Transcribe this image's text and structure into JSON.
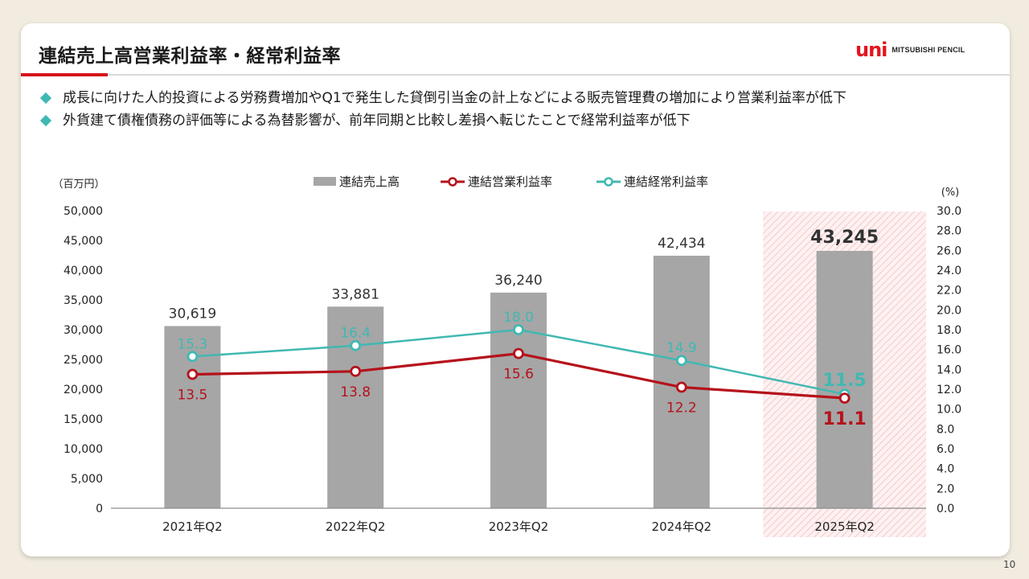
{
  "page": {
    "title": "連結売上高営業利益率・経常利益率",
    "logo_mark": "uni",
    "logo_text": "MITSUBISHI PENCIL",
    "page_number": "10",
    "bullets": [
      "成長に向けた人的投資による労務費増加やQ1で発生した貸倒引当金の計上などによる販売管理費の増加により営業利益率が低下",
      "外貨建て債権債務の評価等による為替影響が、前年同期と比較し差損へ転じたことで経常利益率が低下"
    ]
  },
  "colors": {
    "bar": "#a6a6a6",
    "operating": "#b5121b",
    "ordinary": "#41b8b2",
    "highlight": "#d8131c",
    "accent": "#d8131c"
  },
  "chart_data": {
    "type": "bar",
    "categories": [
      "2021年Q2",
      "2022年Q2",
      "2023年Q2",
      "2024年Q2",
      "2025年Q2"
    ],
    "left_axis": {
      "unit_label": "（百万円）",
      "ylim": [
        0,
        50000
      ],
      "ticks": [
        "0",
        "5,000",
        "10,000",
        "15,000",
        "20,000",
        "25,000",
        "30,000",
        "35,000",
        "40,000",
        "45,000",
        "50,000"
      ]
    },
    "right_axis": {
      "unit_label": "(%)",
      "ylim": [
        0,
        30
      ],
      "ticks": [
        "0.0",
        "2.0",
        "4.0",
        "6.0",
        "8.0",
        "10.0",
        "12.0",
        "14.0",
        "16.0",
        "18.0",
        "20.0",
        "22.0",
        "24.0",
        "26.0",
        "28.0",
        "30.0"
      ]
    },
    "series": [
      {
        "name": "連結売上高",
        "type": "bar",
        "axis": "left",
        "values": [
          30619,
          33881,
          36240,
          42434,
          43245
        ],
        "labels": [
          "30,619",
          "33,881",
          "36,240",
          "42,434",
          "43,245"
        ]
      },
      {
        "name": "連結営業利益率",
        "type": "line",
        "axis": "right",
        "values": [
          13.5,
          13.8,
          15.6,
          12.2,
          11.1
        ],
        "labels": [
          "13.5",
          "13.8",
          "15.6",
          "12.2",
          "11.1"
        ]
      },
      {
        "name": "連結経常利益率",
        "type": "line",
        "axis": "right",
        "values": [
          15.3,
          16.4,
          18.0,
          14.9,
          11.5
        ],
        "labels": [
          "15.3",
          "16.4",
          "18.0",
          "14.9",
          "11.5"
        ]
      }
    ],
    "highlight_category": "2025年Q2",
    "legend": "top-center"
  }
}
